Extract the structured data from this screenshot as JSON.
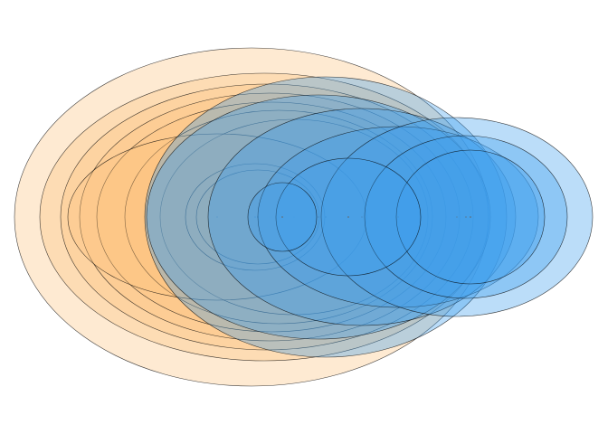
{
  "chart_data": {
    "type": "scatter",
    "title": "",
    "xlabel": "",
    "ylabel": "",
    "grid": false,
    "legend": "none",
    "colors": {
      "orange": "#fbc27f",
      "blue": "#3d9eef",
      "outline": "#000000"
    },
    "series": [
      {
        "color": "orange",
        "points": [
          {
            "x": 278,
            "rx": 262,
            "ry": 187
          },
          {
            "x": 292,
            "rx": 248,
            "ry": 159
          },
          {
            "x": 295,
            "rx": 228,
            "ry": 147
          },
          {
            "x": 298,
            "rx": 210,
            "ry": 137
          },
          {
            "x": 300,
            "rx": 193,
            "ry": 127
          },
          {
            "x": 308,
            "rx": 170,
            "ry": 118
          },
          {
            "x": 325,
            "rx": 148,
            "ry": 108
          },
          {
            "x": 240,
            "rx": 165,
            "ry": 92
          },
          {
            "x": 282,
            "rx": 77,
            "ry": 59
          },
          {
            "x": 285,
            "rx": 68,
            "ry": 52
          }
        ]
      },
      {
        "color": "blue",
        "points": [
          {
            "x": 360,
            "rx": 200,
            "ry": 155
          },
          {
            "x": 352,
            "rx": 190,
            "ry": 135
          },
          {
            "x": 400,
            "rx": 170,
            "ry": 120
          },
          {
            "x": 440,
            "rx": 155,
            "ry": 100
          },
          {
            "x": 505,
            "rx": 150,
            "ry": 110
          },
          {
            "x": 515,
            "rx": 112,
            "ry": 90
          },
          {
            "x": 520,
            "rx": 82,
            "ry": 74
          },
          {
            "x": 385,
            "rx": 80,
            "ry": 65
          },
          {
            "x": 312,
            "rx": 38,
            "ry": 38
          }
        ]
      }
    ]
  }
}
